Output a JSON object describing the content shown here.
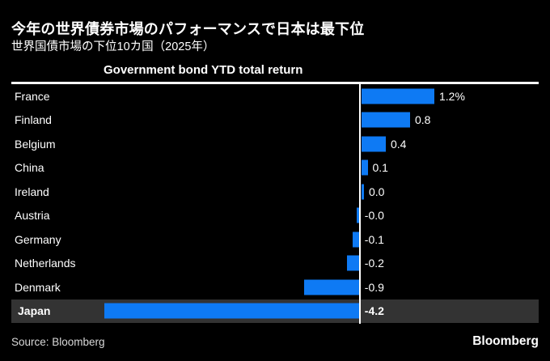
{
  "header": {
    "title": "今年の世界債券市場のパフォーマンスで日本は最下位",
    "subtitle": "世界国債市場の下位10カ国（2025年）"
  },
  "chart_data": {
    "type": "bar",
    "orientation": "horizontal",
    "title": "Government bond YTD total return",
    "unit": "%",
    "categories": [
      "France",
      "Finland",
      "Belgium",
      "China",
      "Ireland",
      "Austria",
      "Germany",
      "Netherlands",
      "Denmark",
      "Japan"
    ],
    "values": [
      1.2,
      0.8,
      0.4,
      0.1,
      0.0,
      -0.0,
      -0.1,
      -0.2,
      -0.9,
      -4.2
    ],
    "value_labels": [
      "1.2%",
      "0.8",
      "0.4",
      "0.1",
      "0.0",
      "-0.0",
      "-0.1",
      "-0.2",
      "-0.9",
      "-4.2"
    ],
    "highlighted_category": "Japan",
    "baseline_value": 0,
    "xlim": [
      -4.5,
      2.0
    ],
    "grid": "off",
    "legend": "none",
    "bar_color": "#0e7af4",
    "highlight_band_color": "#333333",
    "baseline_color": "#ffffff",
    "background_color": "#000000"
  },
  "footer": {
    "source": "Source: Bloomberg",
    "logo": "Bloomberg"
  }
}
